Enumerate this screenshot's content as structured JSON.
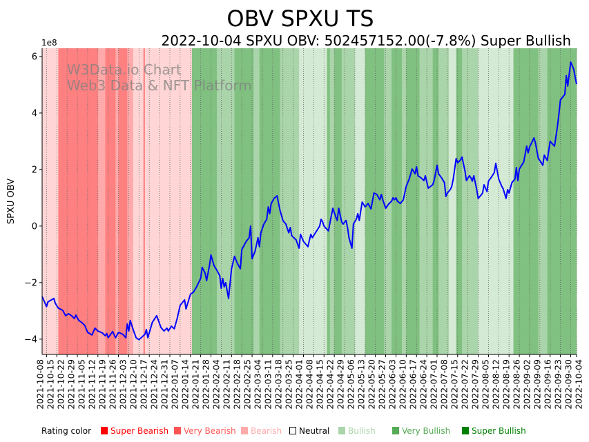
{
  "chart_data": {
    "type": "line",
    "title": "OBV SPXU TS",
    "subtitle": "2022-10-04 SPXU OBV: 502457152.00(-7.8%) Super Bullish",
    "watermark": [
      "W3Data.io Chart",
      "Web3 Data & NFT Platform"
    ],
    "ylabel": "SPXU OBV",
    "y_offset_label": "1e8",
    "ylim": [
      -4.54,
      6.29
    ],
    "yticks": [
      -4,
      -2,
      0,
      2,
      4,
      6
    ],
    "ytick_labels": [
      "−4",
      "−2",
      "0",
      "2",
      "4",
      "6"
    ],
    "x_unit": "days since 2021-10-08",
    "xlim": [
      -3,
      361
    ],
    "xticks": [
      0,
      7,
      14,
      21,
      28,
      35,
      42,
      49,
      56,
      63,
      70,
      77,
      84,
      91,
      98,
      105,
      112,
      119,
      126,
      133,
      140,
      147,
      154,
      161,
      168,
      175,
      182,
      189,
      196,
      203,
      210,
      217,
      224,
      231,
      238,
      245,
      252,
      259,
      266,
      273,
      280,
      287,
      294,
      301,
      308,
      315,
      322,
      329,
      336,
      343,
      350,
      357,
      361
    ],
    "xtick_labels": [
      "2021-10-08",
      "2021-10-15",
      "2021-10-22",
      "2021-10-29",
      "2021-11-05",
      "2021-11-12",
      "2021-11-19",
      "2021-11-26",
      "2021-12-03",
      "2021-12-10",
      "2021-12-17",
      "2021-12-24",
      "2021-12-31",
      "2022-01-07",
      "2022-01-14",
      "2022-01-21",
      "2022-01-28",
      "2022-02-04",
      "2022-02-11",
      "2022-02-18",
      "2022-02-25",
      "2022-03-04",
      "2022-03-11",
      "2022-03-18",
      "2022-03-25",
      "2022-04-01",
      "2022-04-08",
      "2022-04-15",
      "2022-04-22",
      "2022-04-29",
      "2022-05-06",
      "2022-05-13",
      "2022-05-20",
      "2022-05-27",
      "2022-06-03",
      "2022-06-10",
      "2022-06-17",
      "2022-06-24",
      "2022-07-01",
      "2022-07-08",
      "2022-07-15",
      "2022-07-22",
      "2022-07-29",
      "2022-08-05",
      "2022-08-12",
      "2022-08-19",
      "2022-08-26",
      "2022-09-02",
      "2022-09-09",
      "2022-09-16",
      "2022-09-23",
      "2022-09-30",
      "2022-10-04"
    ],
    "grid": "x dotted",
    "series": [
      {
        "name": "SPXU OBV (1e8)",
        "color": "#0000ff",
        "x": [
          -3,
          0,
          1,
          5,
          6,
          8,
          11,
          13,
          15,
          17,
          19,
          20,
          22,
          24,
          26,
          28,
          31,
          33,
          35,
          38,
          40,
          41,
          42,
          45,
          47,
          49,
          52,
          54,
          55,
          56,
          57,
          59,
          61,
          63,
          67,
          68,
          69,
          72,
          75,
          78,
          80,
          82,
          83,
          85,
          87,
          89,
          91,
          94,
          95,
          98,
          100,
          102,
          105,
          106,
          108,
          109,
          111,
          112,
          114,
          116,
          118,
          119,
          120,
          121,
          122,
          124,
          126,
          128,
          130,
          132,
          133,
          136,
          138,
          139,
          140,
          142,
          144,
          145,
          146,
          148,
          150,
          151,
          152,
          153,
          155,
          157,
          159,
          161,
          163,
          165,
          166,
          167,
          170,
          172,
          173,
          175,
          178,
          180,
          181,
          184,
          186,
          187,
          188,
          189,
          192,
          195,
          197,
          198,
          199,
          201,
          202,
          204,
          205,
          206,
          208,
          209,
          211,
          212,
          213,
          215,
          217,
          219,
          221,
          223,
          225,
          227,
          228,
          229,
          231,
          233,
          235,
          236,
          237,
          238,
          239,
          241,
          243,
          245,
          247,
          249,
          251,
          252,
          253,
          255,
          257,
          258,
          260,
          263,
          264,
          266,
          267,
          269,
          271,
          272,
          273,
          275,
          276,
          277,
          279,
          280,
          282,
          283,
          285,
          286,
          288,
          289,
          290,
          291,
          293,
          294,
          296,
          297,
          298,
          300,
          301,
          303,
          305,
          306,
          308,
          310,
          311,
          313,
          314,
          315,
          317,
          319,
          320,
          321,
          322,
          325,
          327,
          328,
          329,
          332,
          333,
          335,
          337,
          338,
          339,
          341,
          343,
          345,
          346,
          348,
          349,
          350,
          353,
          354,
          355,
          357,
          359,
          361
        ],
        "y": [
          -2.49,
          -2.85,
          -2.68,
          -2.56,
          -2.73,
          -2.9,
          -2.98,
          -3.17,
          -3.1,
          -3.17,
          -3.27,
          -3.15,
          -3.34,
          -3.41,
          -3.51,
          -3.76,
          -3.85,
          -3.61,
          -3.71,
          -3.78,
          -3.88,
          -3.8,
          -3.95,
          -3.73,
          -3.95,
          -3.76,
          -3.83,
          -3.95,
          -3.46,
          -3.71,
          -3.34,
          -3.66,
          -3.95,
          -4.02,
          -3.83,
          -3.66,
          -3.95,
          -3.41,
          -3.17,
          -3.59,
          -3.71,
          -3.61,
          -3.71,
          -3.54,
          -3.63,
          -3.27,
          -2.8,
          -2.61,
          -2.93,
          -2.41,
          -2.34,
          -2.17,
          -1.85,
          -1.46,
          -1.66,
          -1.93,
          -1.39,
          -1.02,
          -1.39,
          -1.56,
          -1.76,
          -2.2,
          -1.85,
          -2.15,
          -2.0,
          -2.56,
          -1.51,
          -1.07,
          -1.32,
          -1.51,
          -0.83,
          -0.54,
          -0.41,
          0.0,
          -1.15,
          -0.9,
          -0.41,
          -0.73,
          -0.24,
          0.07,
          0.24,
          0.68,
          0.44,
          0.8,
          0.98,
          1.07,
          0.56,
          0.2,
          0.07,
          -0.24,
          -0.05,
          -0.34,
          -0.49,
          -0.78,
          -0.29,
          -0.54,
          -0.73,
          -0.29,
          -0.41,
          -0.17,
          0.0,
          0.24,
          0.15,
          0.0,
          -0.17,
          0.63,
          0.32,
          0.2,
          0.63,
          0.15,
          0.07,
          0.2,
          -0.05,
          -0.41,
          -0.78,
          0.07,
          0.24,
          0.44,
          0.2,
          0.85,
          0.68,
          0.8,
          0.61,
          1.17,
          1.12,
          0.93,
          1.12,
          0.93,
          0.63,
          0.78,
          0.88,
          1.0,
          0.93,
          1.0,
          0.88,
          0.8,
          0.93,
          1.41,
          1.66,
          2.02,
          1.85,
          2.1,
          1.78,
          1.71,
          1.61,
          1.78,
          1.34,
          1.46,
          1.61,
          2.15,
          1.85,
          1.71,
          1.54,
          1.05,
          1.17,
          1.29,
          1.41,
          1.66,
          2.39,
          2.24,
          2.34,
          2.44,
          1.95,
          1.61,
          1.78,
          1.71,
          1.59,
          1.78,
          1.29,
          0.98,
          1.1,
          1.17,
          1.46,
          1.22,
          1.59,
          1.73,
          1.9,
          2.22,
          1.66,
          1.41,
          1.32,
          0.98,
          1.29,
          1.17,
          1.54,
          1.66,
          2.07,
          1.61,
          2.02,
          2.27,
          2.83,
          2.59,
          2.8,
          3.12,
          2.93,
          2.39,
          2.24,
          2.15,
          2.51,
          2.32,
          3.0,
          2.88,
          2.83,
          3.54,
          3.98,
          4.46,
          4.66,
          5.32,
          4.95,
          5.8,
          5.56,
          5.02
        ]
      }
    ],
    "rating_bands": [
      {
        "from": -3,
        "to": 8,
        "rating": "Bearish"
      },
      {
        "from": 8,
        "to": 35,
        "rating": "Super Bearish"
      },
      {
        "from": 35,
        "to": 40,
        "rating": "Very Bearish"
      },
      {
        "from": 40,
        "to": 47,
        "rating": "Super Bearish"
      },
      {
        "from": 47,
        "to": 49,
        "rating": "Very Bearish"
      },
      {
        "from": 49,
        "to": 55,
        "rating": "Super Bearish"
      },
      {
        "from": 55,
        "to": 59,
        "rating": "Very Bearish"
      },
      {
        "from": 59,
        "to": 66,
        "rating": "Bearish"
      },
      {
        "from": 66,
        "to": 67,
        "rating": "Super Bearish"
      },
      {
        "from": 67,
        "to": 99,
        "rating": "Bearish"
      },
      {
        "from": 99,
        "to": 116,
        "rating": "Super Bullish"
      },
      {
        "from": 116,
        "to": 128,
        "rating": "Very Bullish"
      },
      {
        "from": 128,
        "to": 141,
        "rating": "Super Bullish"
      },
      {
        "from": 141,
        "to": 145,
        "rating": "Very Bullish"
      },
      {
        "from": 145,
        "to": 159,
        "rating": "Super Bullish"
      },
      {
        "from": 159,
        "to": 172,
        "rating": "Very Bullish"
      },
      {
        "from": 172,
        "to": 191,
        "rating": "Bullish"
      },
      {
        "from": 191,
        "to": 193,
        "rating": "Super Bullish"
      },
      {
        "from": 193,
        "to": 196,
        "rating": "Very Bullish"
      },
      {
        "from": 196,
        "to": 201,
        "rating": "Super Bullish"
      },
      {
        "from": 201,
        "to": 210,
        "rating": "Very Bullish"
      },
      {
        "from": 210,
        "to": 217,
        "rating": "Bullish"
      },
      {
        "from": 217,
        "to": 230,
        "rating": "Super Bullish"
      },
      {
        "from": 230,
        "to": 235,
        "rating": "Very Bullish"
      },
      {
        "from": 235,
        "to": 242,
        "rating": "Super Bullish"
      },
      {
        "from": 242,
        "to": 245,
        "rating": "Very Bullish"
      },
      {
        "from": 245,
        "to": 254,
        "rating": "Super Bullish"
      },
      {
        "from": 254,
        "to": 263,
        "rating": "Very Bullish"
      },
      {
        "from": 263,
        "to": 267,
        "rating": "Super Bullish"
      },
      {
        "from": 267,
        "to": 274,
        "rating": "Very Bullish"
      },
      {
        "from": 274,
        "to": 279,
        "rating": "Bullish"
      },
      {
        "from": 279,
        "to": 283,
        "rating": "Super Bullish"
      },
      {
        "from": 283,
        "to": 294,
        "rating": "Very Bullish"
      },
      {
        "from": 294,
        "to": 318,
        "rating": "Bullish"
      },
      {
        "from": 318,
        "to": 335,
        "rating": "Super Bullish"
      },
      {
        "from": 335,
        "to": 341,
        "rating": "Very Bullish"
      },
      {
        "from": 341,
        "to": 361,
        "rating": "Super Bullish"
      }
    ],
    "legend": {
      "title": "Rating color",
      "placement": "bottom",
      "items": [
        {
          "label": "Super Bearish",
          "color": "#ff0000",
          "band": "#ff8080"
        },
        {
          "label": "Very Bearish",
          "color": "#ff5555",
          "band": "#ffaaaa"
        },
        {
          "label": "Bearish",
          "color": "#ffaaaa",
          "band": "#ffd5d5"
        },
        {
          "label": "Neutral",
          "color": "#000000",
          "band": "#ffffff"
        },
        {
          "label": "Bullish",
          "color": "#aad4aa",
          "band": "#d5ead5"
        },
        {
          "label": "Very Bullish",
          "color": "#55aa55",
          "band": "#aad4aa"
        },
        {
          "label": "Super Bullish",
          "color": "#008000",
          "band": "#80c080"
        }
      ]
    }
  }
}
